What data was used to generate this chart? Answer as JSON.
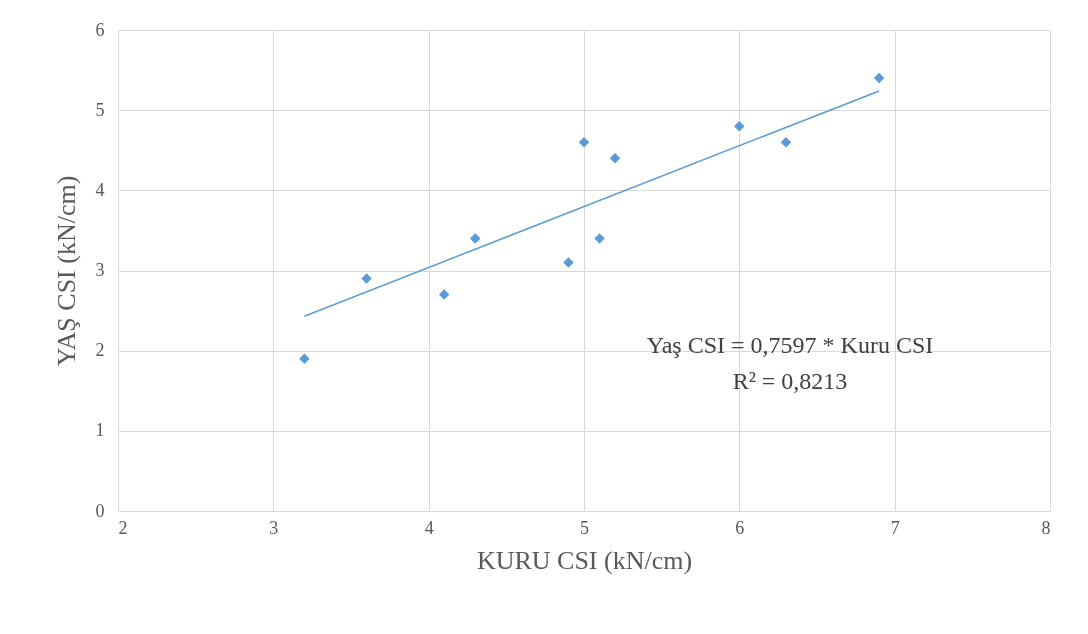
{
  "chart_data": {
    "type": "scatter",
    "xlabel": "KURU CSI (kN/cm)",
    "ylabel": "YAŞ CSI (kN/cm)",
    "xlim": [
      2,
      8
    ],
    "ylim": [
      0,
      6
    ],
    "xticks": [
      2,
      3,
      4,
      5,
      6,
      7,
      8
    ],
    "yticks": [
      0,
      1,
      2,
      3,
      4,
      5,
      6
    ],
    "grid": true,
    "series": [
      {
        "marker": "diamond",
        "color": "#5b9bd5",
        "x": [
          3.2,
          3.6,
          4.1,
          4.3,
          4.9,
          5.0,
          5.1,
          5.2,
          6.0,
          6.3,
          6.9
        ],
        "values": [
          1.9,
          2.9,
          2.7,
          3.4,
          3.1,
          4.6,
          3.4,
          4.4,
          4.8,
          4.6,
          5.4
        ]
      },
      {
        "type": "line",
        "marker": "none",
        "color": "#5b9bd5",
        "x": [
          3.2,
          6.9
        ],
        "values": [
          2.43,
          5.24
        ]
      }
    ],
    "annotations": [
      "Yaş CSI = 0,7597 * Kuru CSI",
      "R² = 0,8213"
    ]
  }
}
